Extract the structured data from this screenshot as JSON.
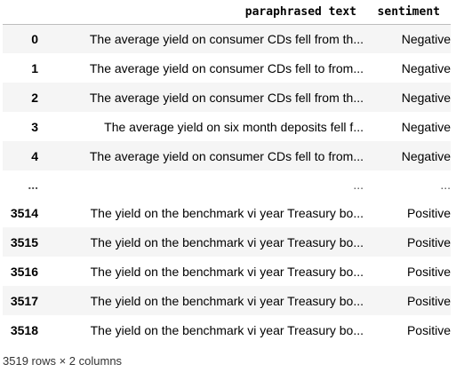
{
  "table": {
    "columns": [
      "paraphrased text",
      "sentiment"
    ],
    "rows": [
      {
        "index": "0",
        "text": "The average yield on consumer CDs fell from th...",
        "sentiment": "Negative"
      },
      {
        "index": "1",
        "text": "The average yield on consumer CDs fell to from...",
        "sentiment": "Negative"
      },
      {
        "index": "2",
        "text": "The average yield on consumer CDs fell from th...",
        "sentiment": "Negative"
      },
      {
        "index": "3",
        "text": "The average yield on six month deposits fell f...",
        "sentiment": "Negative"
      },
      {
        "index": "4",
        "text": "The average yield on consumer CDs fell to from...",
        "sentiment": "Negative"
      },
      {
        "index": "...",
        "text": "...",
        "sentiment": "..."
      },
      {
        "index": "3514",
        "text": "The yield on the benchmark vi year Treasury bo...",
        "sentiment": "Positive"
      },
      {
        "index": "3515",
        "text": "The yield on the benchmark vi year Treasury bo...",
        "sentiment": "Positive"
      },
      {
        "index": "3516",
        "text": "The yield on the benchmark vi year Treasury bo...",
        "sentiment": "Positive"
      },
      {
        "index": "3517",
        "text": "The yield on the benchmark vi year Treasury bo...",
        "sentiment": "Positive"
      },
      {
        "index": "3518",
        "text": "The yield on the benchmark vi year Treasury bo...",
        "sentiment": "Positive"
      }
    ]
  },
  "footer": {
    "shape": "3519 rows × 2 columns"
  },
  "colors": {
    "stripe": "#f5f5f5",
    "header_border": "#bdbdbd",
    "text": "#000000"
  }
}
